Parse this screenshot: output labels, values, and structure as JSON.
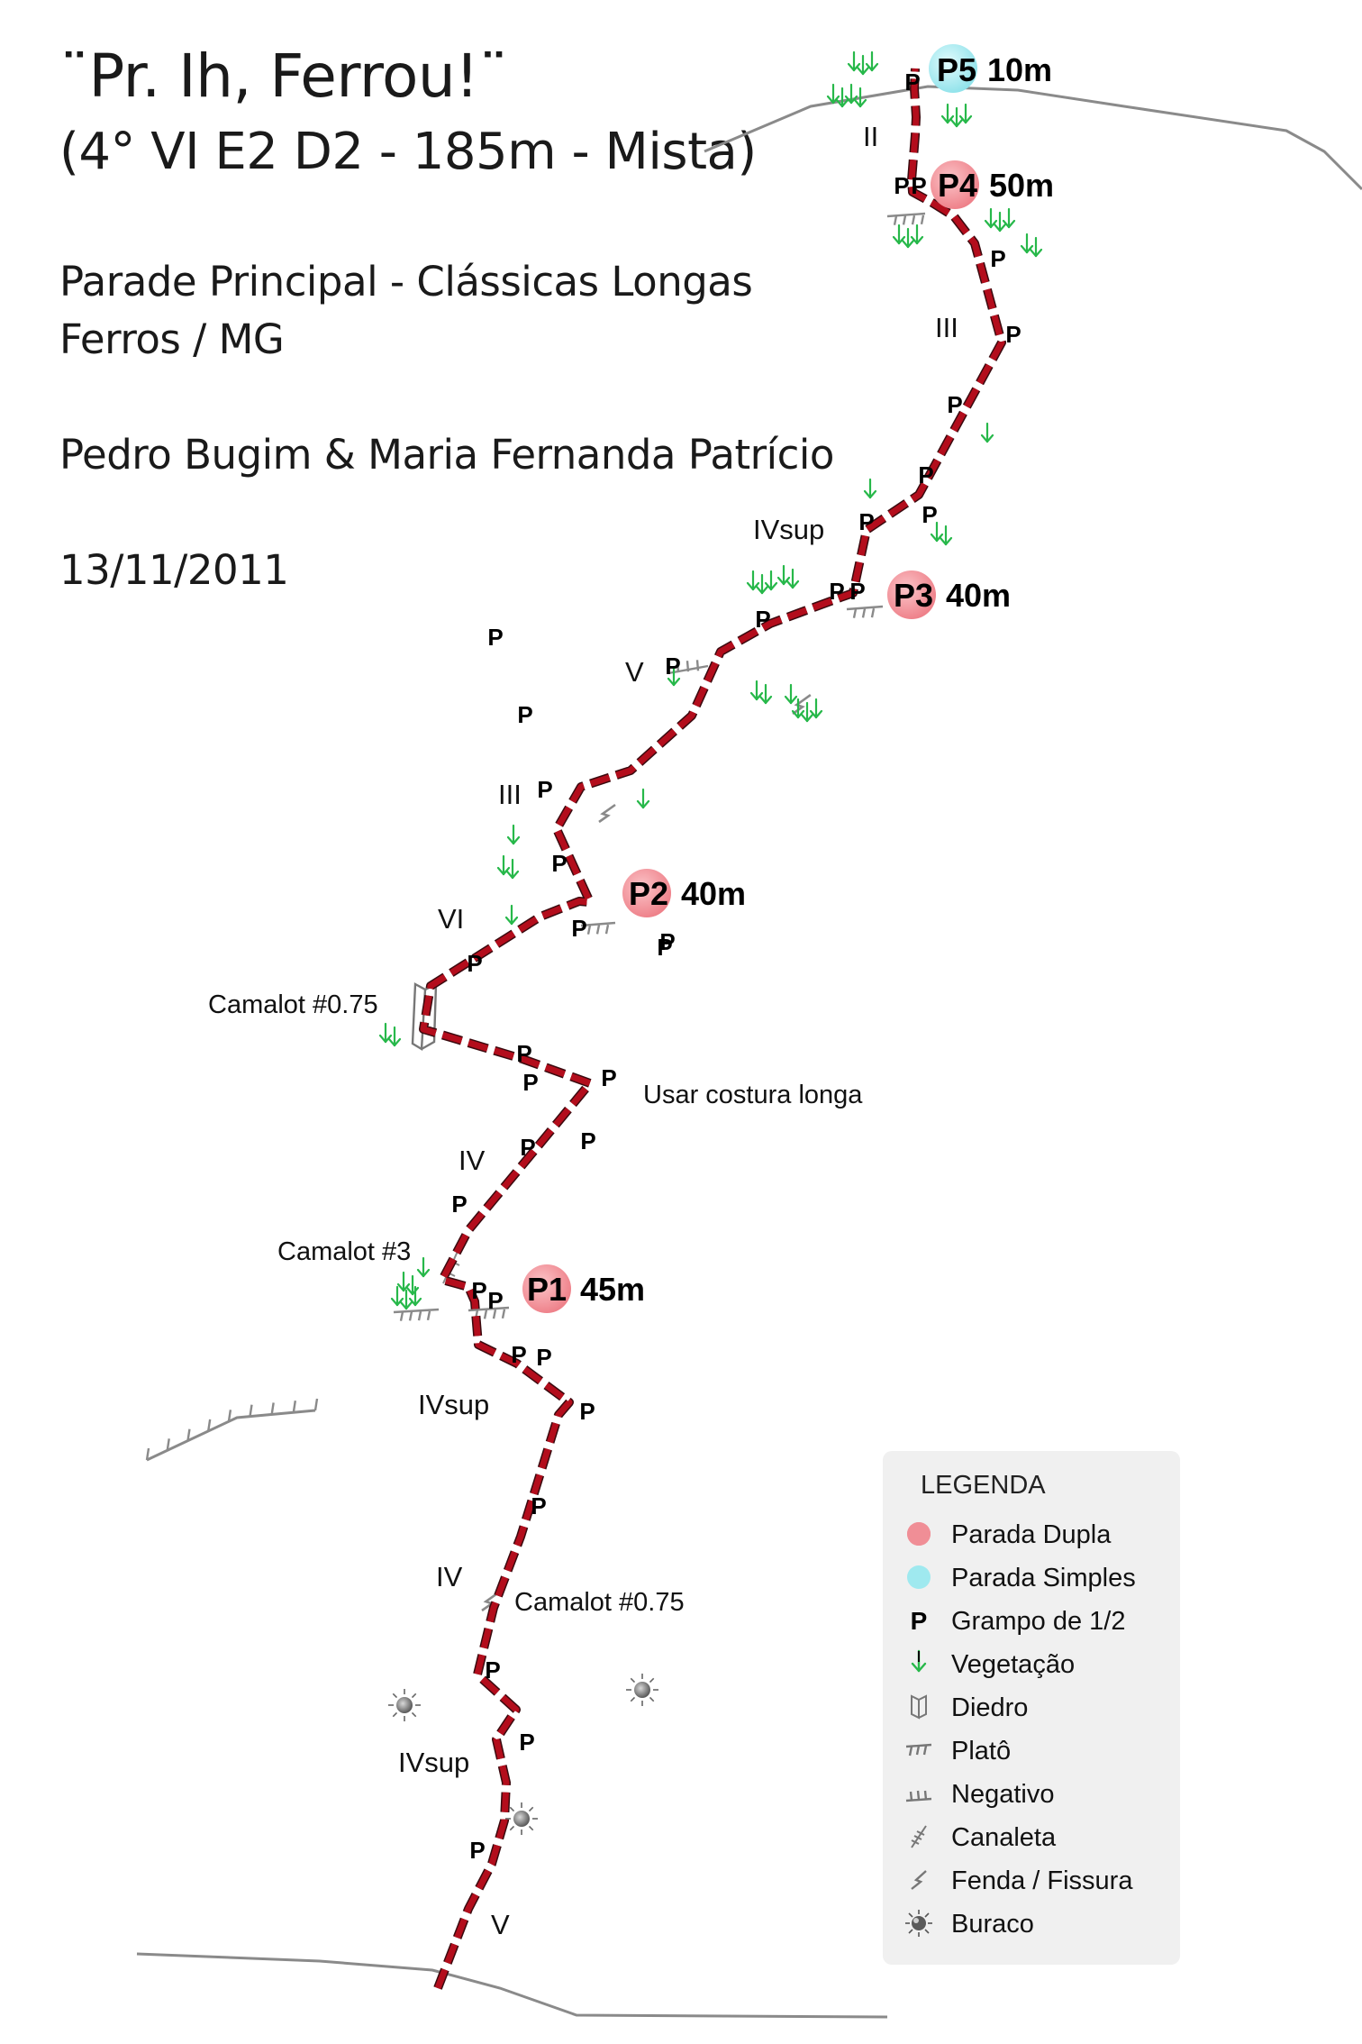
{
  "header": {
    "title": "¨Pr. Ih, Ferrou!¨",
    "grade": "(4° VI E2 D2 - 185m - Mista)",
    "location_1": "Parade Principal - Clássicas Longas",
    "location_2": "Ferros / MG",
    "authors": "Pedro Bugim & Maria Fernanda Patrício",
    "date": "13/11/2011"
  },
  "belays": [
    {
      "id": "P5",
      "length": "10m",
      "type": "simple"
    },
    {
      "id": "P4",
      "length": "50m",
      "type": "double"
    },
    {
      "id": "P3",
      "length": "40m",
      "type": "double"
    },
    {
      "id": "P2",
      "length": "40m",
      "type": "double"
    },
    {
      "id": "P1",
      "length": "45m",
      "type": "double"
    }
  ],
  "grades": [
    "II",
    "III",
    "IVsup",
    "V",
    "III",
    "VI",
    "IV",
    "IVsup",
    "IV",
    "IVsup",
    "V"
  ],
  "notes": [
    "Camalot #0.75",
    "Usar costura longa",
    "Camalot #3",
    "Camalot #0.75"
  ],
  "bolt_label": "P",
  "legend": {
    "title": "LEGENDA",
    "items": [
      {
        "icon": "double-belay-icon",
        "label": "Parada Dupla"
      },
      {
        "icon": "single-belay-icon",
        "label": "Parada Simples"
      },
      {
        "icon": "bolt-icon",
        "label": "Grampo de 1/2"
      },
      {
        "icon": "vegetation-icon",
        "label": "Vegetação"
      },
      {
        "icon": "dihedral-icon",
        "label": "Diedro"
      },
      {
        "icon": "ledge-icon",
        "label": "Platô"
      },
      {
        "icon": "overhang-icon",
        "label": "Negativo"
      },
      {
        "icon": "gully-icon",
        "label": "Canaleta"
      },
      {
        "icon": "crack-icon",
        "label": "Fenda / Fissura"
      },
      {
        "icon": "hole-icon",
        "label": "Buraco"
      }
    ]
  },
  "colors": {
    "route": "#b30d1c",
    "double_belay": "#f2959c",
    "single_belay": "#a8eef3",
    "vegetation": "#27b84a",
    "terrain": "#8a8a8a"
  }
}
